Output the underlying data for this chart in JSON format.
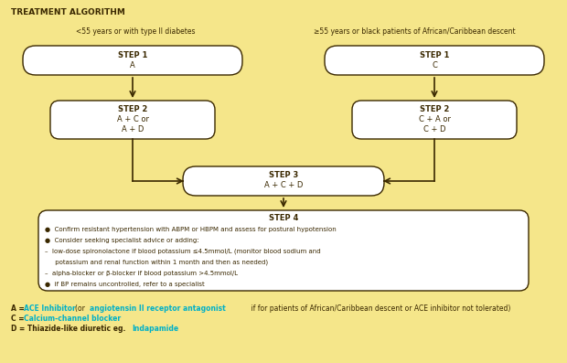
{
  "bg_color": "#f5e68a",
  "title": "TREATMENT ALGORITHM",
  "left_label": "<55 years or with type II diabetes",
  "right_label": "≥55 years or black patients of African/Caribbean descent",
  "step1_left_line1": "STEP 1",
  "step1_left_line2": "A",
  "step1_right_line1": "STEP 1",
  "step1_right_line2": "C",
  "step2_left_line1": "STEP 2",
  "step2_left_line2": "A + C or",
  "step2_left_line3": "A + D",
  "step2_right_line1": "STEP 2",
  "step2_right_line2": "C + A or",
  "step2_right_line3": "C + D",
  "step3_line1": "STEP 3",
  "step3_line2": "A + C + D",
  "step4_title": "STEP 4",
  "cyan_color": "#00b0c8",
  "box_color": "#ffffff",
  "text_color": "#3a2800",
  "border_color": "#3a2800"
}
